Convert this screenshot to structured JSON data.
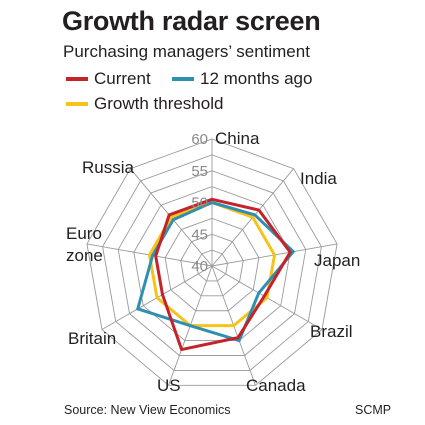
{
  "header": {
    "title": "Growth radar screen",
    "subtitle": "Purchasing managers’ sentiment"
  },
  "legend": [
    {
      "label": "Current",
      "color": "#c4232b"
    },
    {
      "label": "12 months ago",
      "color": "#2f8fb0"
    },
    {
      "label": "Growth threshold",
      "color": "#f7c21a"
    }
  ],
  "footer": {
    "source": "Source: New View Economics",
    "credit": "SCMP"
  },
  "chart_data": {
    "type": "radar",
    "axes": [
      "China",
      "India",
      "Japan",
      "Brazil",
      "Canada",
      "US",
      "Britain",
      "Euro zone",
      "Russia"
    ],
    "range": [
      40,
      60
    ],
    "ticks": [
      40,
      45,
      50,
      55,
      60
    ],
    "series": [
      {
        "name": "Current",
        "color": "#c4232b",
        "values": [
          50.5,
          51.5,
          52.5,
          49.5,
          52,
          54,
          49,
          49,
          50.5
        ]
      },
      {
        "name": "12 months ago",
        "color": "#2f8fb0",
        "values": [
          50,
          50.5,
          53,
          48.5,
          52.5,
          50,
          53.5,
          49.5,
          49.5
        ]
      },
      {
        "name": "Growth threshold",
        "color": "#f7c21a",
        "values": [
          50,
          50,
          50,
          50,
          50,
          50,
          50,
          50,
          50
        ]
      }
    ]
  }
}
